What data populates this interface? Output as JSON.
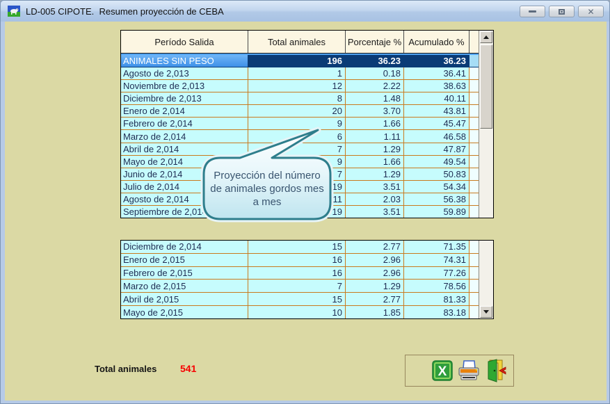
{
  "window": {
    "title": "LD-005 CIPOTE.  Resumen proyección de CEBA",
    "icon": "cow-pasture-icon",
    "controls": [
      "minimize",
      "maximize",
      "close"
    ]
  },
  "table": {
    "columns": [
      "Período Salida",
      "Total animales",
      "Porcentaje %",
      "Acumulado %"
    ],
    "top_rows": [
      {
        "period": "ANIMALES SIN PESO",
        "total": "196",
        "pct": "36.23",
        "cum": "36.23",
        "selected": true
      },
      {
        "period": "Agosto de 2,013",
        "total": "1",
        "pct": "0.18",
        "cum": "36.41"
      },
      {
        "period": "Noviembre de 2,013",
        "total": "12",
        "pct": "2.22",
        "cum": "38.63"
      },
      {
        "period": "Diciembre de 2,013",
        "total": "8",
        "pct": "1.48",
        "cum": "40.11"
      },
      {
        "period": "Enero de 2,014",
        "total": "20",
        "pct": "3.70",
        "cum": "43.81"
      },
      {
        "period": "Febrero de 2,014",
        "total": "9",
        "pct": "1.66",
        "cum": "45.47"
      },
      {
        "period": "Marzo de 2,014",
        "total": "6",
        "pct": "1.11",
        "cum": "46.58"
      },
      {
        "period": "Abril de 2,014",
        "total": "7",
        "pct": "1.29",
        "cum": "47.87"
      },
      {
        "period": "Mayo de 2,014",
        "total": "9",
        "pct": "1.66",
        "cum": "49.54"
      },
      {
        "period": "Junio de 2,014",
        "total": "7",
        "pct": "1.29",
        "cum": "50.83"
      },
      {
        "period": "Julio de 2,014",
        "total": "19",
        "pct": "3.51",
        "cum": "54.34"
      },
      {
        "period": "Agosto de 2,014",
        "total": "11",
        "pct": "2.03",
        "cum": "56.38"
      },
      {
        "period": "Septiembre de 2,014",
        "total": "19",
        "pct": "3.51",
        "cum": "59.89"
      }
    ],
    "bottom_rows": [
      {
        "period": "Diciembre de 2,014",
        "total": "15",
        "pct": "2.77",
        "cum": "71.35"
      },
      {
        "period": "Enero de 2,015",
        "total": "16",
        "pct": "2.96",
        "cum": "74.31"
      },
      {
        "period": "Febrero de 2,015",
        "total": "16",
        "pct": "2.96",
        "cum": "77.26"
      },
      {
        "period": "Marzo de 2,015",
        "total": "7",
        "pct": "1.29",
        "cum": "78.56"
      },
      {
        "period": "Abril de 2,015",
        "total": "15",
        "pct": "2.77",
        "cum": "81.33"
      },
      {
        "period": "Mayo de 2,015",
        "total": "10",
        "pct": "1.85",
        "cum": "83.18"
      }
    ]
  },
  "callout": {
    "text": "Proyección del número de animales gordos mes a mes"
  },
  "footer": {
    "total_label": "Total animales",
    "total_value": "541"
  },
  "toolbar": {
    "buttons": [
      {
        "name": "export-excel-button",
        "icon": "excel-icon"
      },
      {
        "name": "print-button",
        "icon": "printer-icon"
      },
      {
        "name": "exit-button",
        "icon": "exit-door-icon"
      }
    ]
  },
  "colors": {
    "client_background": "#dbd9a4",
    "row_background": "#c6fcfd",
    "row_border": "#c97a1e",
    "header_background": "#fcf6e2",
    "selected_row": "#0a3b76",
    "selected_first_cell": "#4da0ee",
    "total_value_red": "#f70000",
    "callout_border": "#2e7e8c"
  }
}
